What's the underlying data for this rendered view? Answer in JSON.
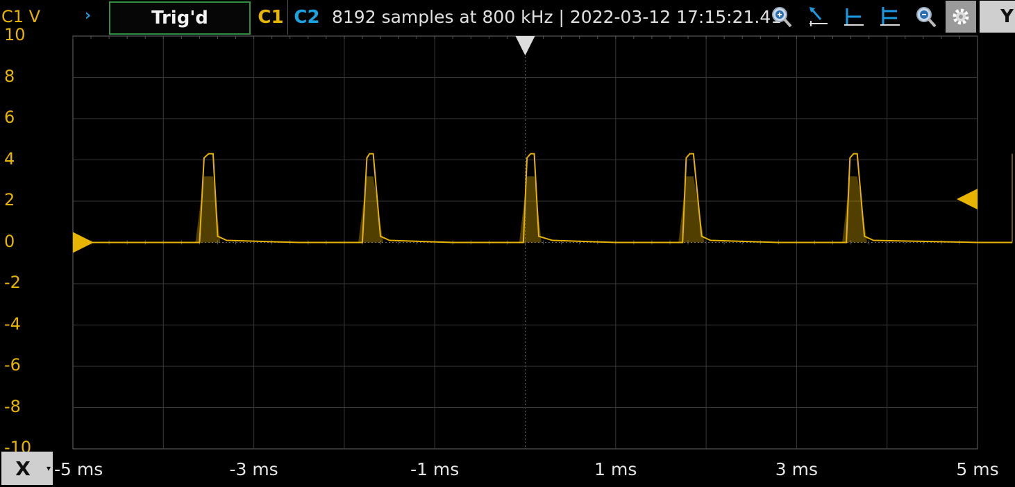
{
  "header": {
    "channel_axis_label": "C1 V",
    "expand_arrow": "›",
    "trigger_status": "Trig'd",
    "channel1": "C1",
    "channel2": "C2",
    "acquisition_info": "8192 samples at 800 kHz | 2022-03-12 17:15:21.41",
    "y_button": "Y"
  },
  "toolbar": {
    "icons": [
      "zoom-in-icon",
      "cursor-arrow-icon",
      "horizontal-cursors-icon",
      "double-horizontal-cursors-icon",
      "zoom-out-icon",
      "gear-icon"
    ]
  },
  "footer": {
    "x_button": "X",
    "x_dropdown": "▾"
  },
  "colors": {
    "channel1": "#e8b400",
    "channel2": "#1aa3e0",
    "grid": "#3a3a3a",
    "trigger_box": "#2f8f3f"
  },
  "chart_data": {
    "type": "line",
    "xlabel": "",
    "ylabel": "C1 V",
    "x_unit": "ms",
    "y_unit": "V",
    "xlim": [
      -5,
      5
    ],
    "ylim": [
      -10,
      10
    ],
    "x_ticks": [
      "-5 ms",
      "-3 ms",
      "-1 ms",
      "1 ms",
      "3 ms",
      "5 ms"
    ],
    "y_ticks": [
      "10",
      "8",
      "6",
      "4",
      "2",
      "0",
      "-2",
      "-4",
      "-6",
      "-8",
      "-10"
    ],
    "grid": true,
    "trigger_time_ms": 0,
    "trigger_level_v": 2.1,
    "channel_offset_v": 0,
    "series": [
      {
        "name": "C1",
        "x": [
          -5,
          -3.6,
          -3.55,
          -3.5,
          -3.45,
          -3.4,
          -3.3,
          -2.5,
          -1.8,
          -1.75,
          -1.72,
          -1.68,
          -1.6,
          -1.5,
          -0.8,
          -0.02,
          0.02,
          0.06,
          0.1,
          0.15,
          0.3,
          1.0,
          1.74,
          1.78,
          1.82,
          1.86,
          1.95,
          2.05,
          2.8,
          3.55,
          3.59,
          3.63,
          3.67,
          3.75,
          3.85,
          5
        ],
        "y": [
          0,
          0,
          4.1,
          4.3,
          4.3,
          0.3,
          0.1,
          0,
          0,
          4.1,
          4.3,
          4.3,
          0.3,
          0.1,
          0,
          0,
          4.1,
          4.3,
          4.3,
          0.3,
          0.1,
          0,
          0,
          4.1,
          4.3,
          4.3,
          0.3,
          0.1,
          0,
          0,
          4.1,
          4.3,
          4.3,
          0.3,
          0.1,
          0
        ]
      }
    ]
  }
}
